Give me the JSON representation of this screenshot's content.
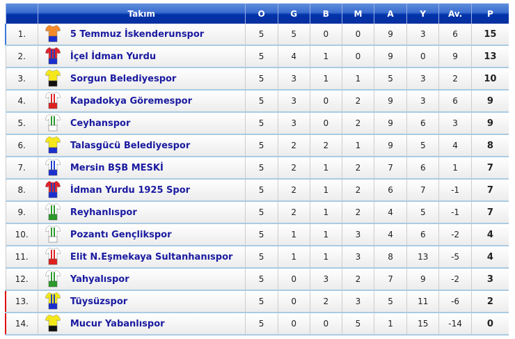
{
  "headers": [
    "",
    "Takım",
    "O",
    "G",
    "B",
    "M",
    "A",
    "Y",
    "Av.",
    "P"
  ],
  "rows": [
    {
      "rank": "1.",
      "team": "5 Temmuz İskenderunspor",
      "stats": [
        "5",
        "5",
        "0",
        "0",
        "9",
        "3",
        "6"
      ],
      "p": "15",
      "kit": [
        "#f48a2a",
        "#f48a2a",
        "#1b2fd0"
      ],
      "zone": "first"
    },
    {
      "rank": "2.",
      "team": "İçel İdman Yurdu",
      "stats": [
        "5",
        "4",
        "1",
        "0",
        "9",
        "0",
        "9"
      ],
      "p": "13",
      "kit": [
        "#e0202a",
        "#2040c0",
        "#1b2fd0"
      ],
      "zone": ""
    },
    {
      "rank": "3.",
      "team": "Sorgun Belediyespor",
      "stats": [
        "5",
        "3",
        "1",
        "1",
        "5",
        "3",
        "2"
      ],
      "p": "10",
      "kit": [
        "#f5e81a",
        "#f5e81a",
        "#111111"
      ],
      "zone": ""
    },
    {
      "rank": "4.",
      "team": "Kapadokya Göremespor",
      "stats": [
        "5",
        "3",
        "0",
        "2",
        "9",
        "3",
        "6"
      ],
      "p": "9",
      "kit": [
        "#ffffff",
        "#e02020",
        "#e02020"
      ],
      "zone": ""
    },
    {
      "rank": "5.",
      "team": "Ceyhanspor",
      "stats": [
        "5",
        "3",
        "0",
        "2",
        "9",
        "6",
        "3"
      ],
      "p": "9",
      "kit": [
        "#ffffff",
        "#2a9a2a",
        "#ffffff"
      ],
      "zone": ""
    },
    {
      "rank": "6.",
      "team": "Talasgücü Belediyespor",
      "stats": [
        "5",
        "2",
        "2",
        "1",
        "9",
        "5",
        "4"
      ],
      "p": "8",
      "kit": [
        "#f5e81a",
        "#f5e81a",
        "#1b2fd0"
      ],
      "zone": ""
    },
    {
      "rank": "7.",
      "team": "Mersin BŞB MESKİ",
      "stats": [
        "5",
        "2",
        "1",
        "2",
        "7",
        "6",
        "1"
      ],
      "p": "7",
      "kit": [
        "#ffffff",
        "#2040d0",
        "#1b2fd0"
      ],
      "zone": ""
    },
    {
      "rank": "8.",
      "team": "İdman Yurdu 1925 Spor",
      "stats": [
        "5",
        "2",
        "1",
        "2",
        "6",
        "7",
        "-1"
      ],
      "p": "7",
      "kit": [
        "#e0202a",
        "#2040c0",
        "#1b2fd0"
      ],
      "zone": ""
    },
    {
      "rank": "9.",
      "team": "Reyhanlıspor",
      "stats": [
        "5",
        "2",
        "1",
        "2",
        "4",
        "5",
        "-1"
      ],
      "p": "7",
      "kit": [
        "#ffffff",
        "#2a9a2a",
        "#2a9a2a"
      ],
      "zone": ""
    },
    {
      "rank": "10.",
      "team": "Pozantı Gençlikspor",
      "stats": [
        "5",
        "1",
        "1",
        "3",
        "4",
        "6",
        "-2"
      ],
      "p": "4",
      "kit": [
        "#ffffff",
        "#2a9a2a",
        "#ffffff"
      ],
      "zone": ""
    },
    {
      "rank": "11.",
      "team": "Elit N.Eşmekaya Sultanhanıspor",
      "stats": [
        "5",
        "1",
        "1",
        "3",
        "8",
        "13",
        "-5"
      ],
      "p": "4",
      "kit": [
        "#ffffff",
        "#e02020",
        "#e02020"
      ],
      "zone": ""
    },
    {
      "rank": "12.",
      "team": "Yahyalıspor",
      "stats": [
        "5",
        "0",
        "3",
        "2",
        "7",
        "9",
        "-2"
      ],
      "p": "3",
      "kit": [
        "#ffffff",
        "#2a9a2a",
        "#2a9a2a"
      ],
      "zone": ""
    },
    {
      "rank": "13.",
      "team": "Tüysüzspor",
      "stats": [
        "5",
        "0",
        "2",
        "3",
        "5",
        "11",
        "-6"
      ],
      "p": "2",
      "kit": [
        "#f5e81a",
        "#2040c0",
        "#1b2fd0"
      ],
      "zone": "rel"
    },
    {
      "rank": "14.",
      "team": "Mucur Yabanlıspor",
      "stats": [
        "5",
        "0",
        "0",
        "5",
        "1",
        "15",
        "-14"
      ],
      "p": "0",
      "kit": [
        "#f5e81a",
        "#f5e81a",
        "#111111"
      ],
      "zone": "rel"
    }
  ]
}
